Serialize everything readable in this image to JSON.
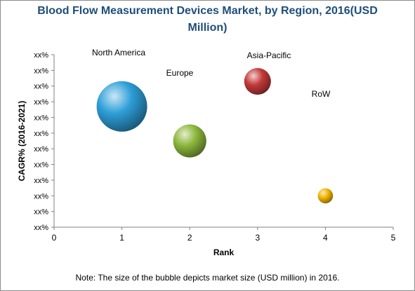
{
  "title": "Blood Flow Measurement Devices Market, by Region, 2016(USD Million)",
  "title_lines": [
    "Blood Flow Measurement Devices Market, by Region, 2016(USD",
    "Million)"
  ],
  "note": "Note: The size of the bubble depicts market size (USD million) in 2016.",
  "colors": {
    "title": "#1f4e79",
    "north_america": "#2e9fd8",
    "europe": "#8db83d",
    "asia_pacific": "#c43a3a",
    "row": "#f2b400"
  },
  "chart_data": {
    "type": "scatter",
    "subtype": "bubble",
    "xlabel": "Rank",
    "ylabel": "CAGR% (2016-2021)",
    "xlim": [
      0,
      5
    ],
    "xticks": [
      "0",
      "1",
      "2",
      "3",
      "4",
      "5"
    ],
    "yticks": [
      "xx%",
      "xx%",
      "xx%",
      "xx%",
      "xx%",
      "xx%",
      "xx%",
      "xx%",
      "xx%",
      "xx%",
      "xx%",
      "xx%"
    ],
    "grid": false,
    "series": [
      {
        "name": "North America",
        "x": 1,
        "y_level": 7.7,
        "size": 1.0,
        "color": "#2e9fd8"
      },
      {
        "name": "Europe",
        "x": 2,
        "y_level": 5.5,
        "size": 0.43,
        "color": "#8db83d"
      },
      {
        "name": "Asia-Pacific",
        "x": 3,
        "y_level": 9.3,
        "size": 0.28,
        "color": "#c43a3a"
      },
      {
        "name": "RoW",
        "x": 4,
        "y_level": 2.0,
        "size": 0.09,
        "color": "#f2b400"
      }
    ]
  }
}
